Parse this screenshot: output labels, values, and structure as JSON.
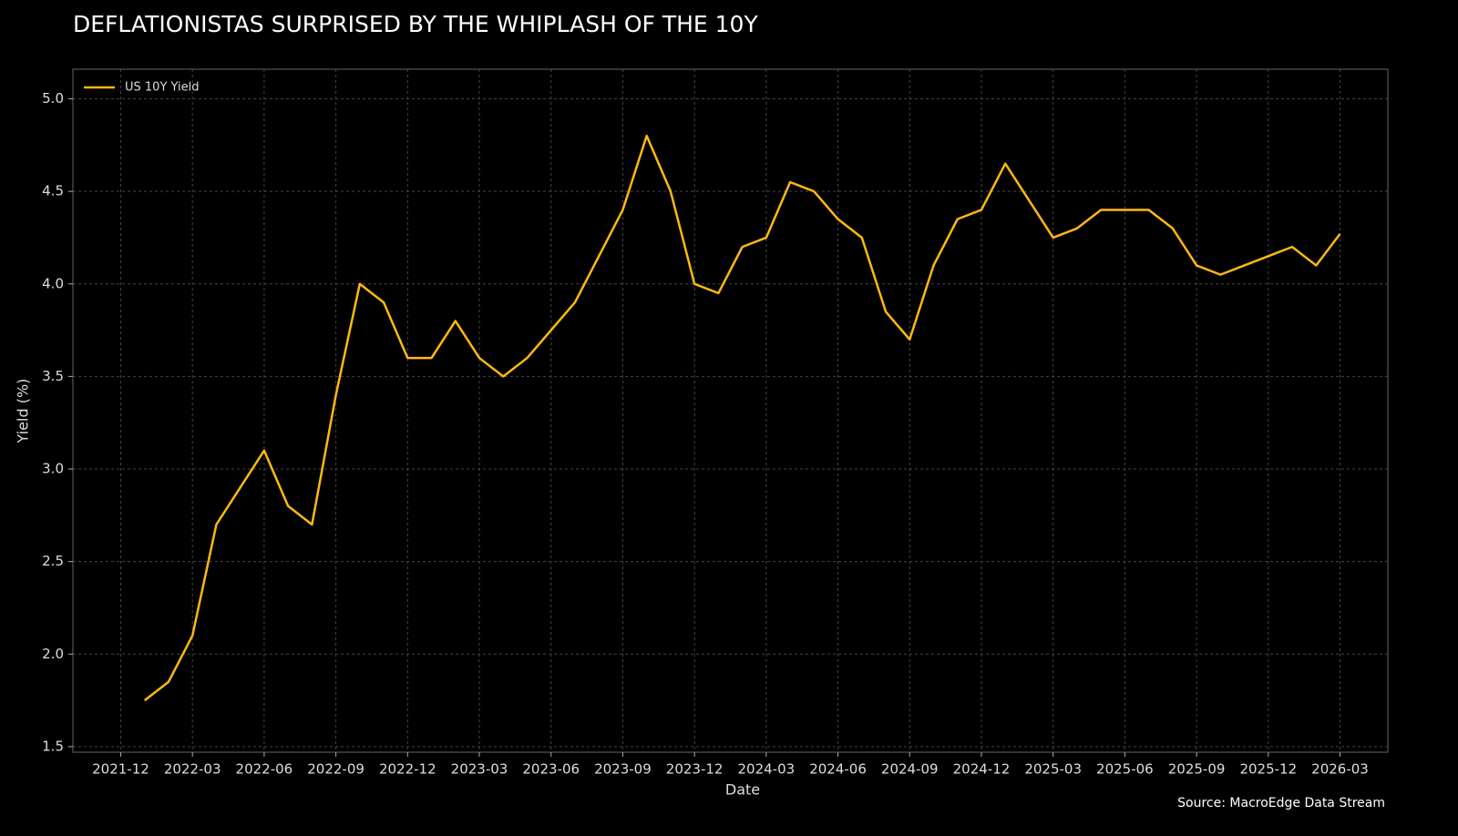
{
  "chart_data": {
    "type": "line",
    "title": "DEFLATIONISTAS SURPRISED BY THE WHIPLASH OF THE 10Y",
    "x_label": "Date",
    "y_label": "Yield (%)",
    "source": "Source: MacroEdge Data Stream",
    "legend": "upper left",
    "grid": true,
    "x": [
      "2022-01",
      "2022-02",
      "2022-03",
      "2022-04",
      "2022-05",
      "2022-06",
      "2022-07",
      "2022-08",
      "2022-09",
      "2022-10",
      "2022-11",
      "2022-12",
      "2023-01",
      "2023-02",
      "2023-03",
      "2023-04",
      "2023-05",
      "2023-06",
      "2023-07",
      "2023-08",
      "2023-09",
      "2023-10",
      "2023-11",
      "2023-12",
      "2024-01",
      "2024-02",
      "2024-03",
      "2024-04",
      "2024-05",
      "2024-06",
      "2024-07",
      "2024-08",
      "2024-09",
      "2024-10",
      "2024-11",
      "2024-12",
      "2025-01",
      "2025-02",
      "2025-03",
      "2025-04",
      "2025-05",
      "2025-06",
      "2025-07",
      "2025-08",
      "2025-09",
      "2025-10",
      "2025-11",
      "2025-12",
      "2026-01",
      "2026-02",
      "2026-03"
    ],
    "series": [
      {
        "name": "US 10Y Yield",
        "color": "#fdb813",
        "values": [
          1.75,
          1.85,
          2.1,
          2.7,
          2.9,
          3.1,
          2.8,
          2.7,
          3.4,
          4.0,
          3.9,
          3.6,
          3.6,
          3.8,
          3.6,
          3.5,
          3.6,
          3.75,
          3.9,
          4.15,
          4.4,
          4.8,
          4.5,
          4.0,
          3.95,
          4.2,
          4.25,
          4.55,
          4.5,
          4.35,
          4.25,
          3.85,
          3.7,
          4.1,
          4.35,
          4.4,
          4.65,
          4.45,
          4.25,
          4.3,
          4.4,
          4.4,
          4.4,
          4.3,
          4.1,
          4.05,
          4.1,
          4.15,
          4.2,
          4.1,
          4.27
        ]
      }
    ],
    "xlim": [
      "2021-10",
      "2026-05"
    ],
    "xticks": [
      "2021-12",
      "2022-03",
      "2022-06",
      "2022-09",
      "2022-12",
      "2023-03",
      "2023-06",
      "2023-09",
      "2023-12",
      "2024-03",
      "2024-06",
      "2024-09",
      "2024-12",
      "2025-03",
      "2025-06",
      "2025-09",
      "2025-12",
      "2026-03"
    ],
    "ylim": [
      1.47,
      5.16
    ],
    "yticks": [
      {
        "value": 1.5,
        "label": "1.5"
      },
      {
        "value": 2,
        "label": "2.0"
      },
      {
        "value": 2.5,
        "label": "2.5"
      },
      {
        "value": 3,
        "label": "3.0"
      },
      {
        "value": 3.5,
        "label": "3.5"
      },
      {
        "value": 4,
        "label": "4.0"
      },
      {
        "value": 4.5,
        "label": "4.5"
      },
      {
        "value": 5,
        "label": "5.0"
      }
    ]
  }
}
